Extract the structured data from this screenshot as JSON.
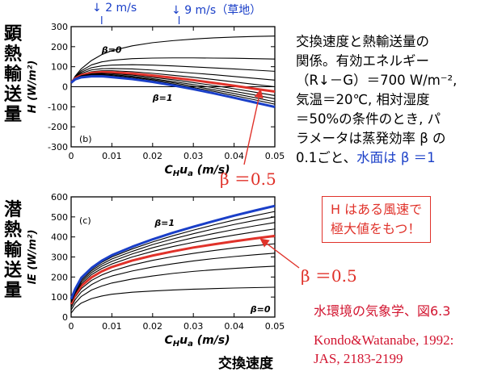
{
  "wind_markers": [
    {
      "label": "2 m/s",
      "x_value": 0.0075
    },
    {
      "label": "9 m/s（草地）",
      "x_value": 0.0265
    }
  ],
  "left_labels": {
    "sensible": [
      "顕",
      "熱",
      "輸",
      "送",
      "量"
    ],
    "latent": [
      "潜",
      "熱",
      "輸",
      "送",
      "量"
    ]
  },
  "description_lines": [
    "交換速度と熱輸送量の",
    "関係。有効エネルギー",
    "（R↓－G）＝700 W/m⁻²,",
    "気温＝20℃, 相対湿度",
    "＝50%の条件のとき, パ",
    "ラメータは蒸発効率 β の"
  ],
  "description_last_prefix": "0.1ごと、",
  "description_last_blue": "水面は β ＝1",
  "beta_half_label_top": "β ＝0.5",
  "beta_half_label_bottom": "β ＝0.5",
  "note_box": [
    "H はある風速で",
    "極大値をもつ！"
  ],
  "xaxis_bottom_label": "交換速度",
  "reference_title": "水環境の気象学、図6.3",
  "reference_citation": [
    "Kondo&Watanabe, 1992:",
    "JAS, 2183-2199"
  ],
  "colors": {
    "highlight_red": "#e0322a",
    "water_blue": "#1a3fc8",
    "curve_black": "#000000"
  },
  "chart_data": [
    {
      "type": "line",
      "panel": "(b)",
      "xlabel": "C_H u_a  (m/s)",
      "ylabel": "H  (W/m²)",
      "xlim": [
        0,
        0.05
      ],
      "ylim": [
        -300,
        300
      ],
      "x_ticks": [
        0,
        0.01,
        0.02,
        0.03,
        0.04,
        0.05
      ],
      "y_ticks": [
        -300,
        -200,
        -100,
        0,
        100,
        200,
        300
      ],
      "x_tick_labels": [
        "0",
        "0.01",
        "0.02",
        "0.03",
        "0.04",
        "0.05"
      ],
      "y_tick_labels": [
        "-300",
        "-200",
        "-100",
        "0",
        "100",
        "200",
        "300"
      ],
      "annotations": [
        "β=0",
        "β=1"
      ],
      "x": [
        0,
        0.001,
        0.0025,
        0.005,
        0.0075,
        0.01,
        0.015,
        0.02,
        0.025,
        0.03,
        0.035,
        0.04,
        0.045,
        0.05
      ],
      "series": [
        {
          "beta": 0.0,
          "values": [
            20,
            53,
            90,
            131,
            160,
            180,
            204,
            220,
            230,
            238,
            244,
            248,
            251,
            253
          ]
        },
        {
          "beta": 0.1,
          "values": [
            20,
            50,
            80,
            109,
            124,
            132,
            140,
            143,
            144,
            144,
            143,
            142,
            140,
            138
          ]
        },
        {
          "beta": 0.2,
          "values": [
            20,
            48,
            73,
            95,
            104,
            108,
            110,
            108,
            104,
            99,
            94,
            89,
            83,
            77
          ]
        },
        {
          "beta": 0.3,
          "values": [
            20,
            46,
            67,
            84,
            90,
            91,
            89,
            83,
            76,
            68,
            60,
            51,
            42,
            33
          ]
        },
        {
          "beta": 0.4,
          "values": [
            20,
            44,
            62,
            75,
            80,
            80,
            75,
            67,
            57,
            47,
            36,
            24,
            12,
            0
          ]
        },
        {
          "beta": 0.5,
          "highlight": "red",
          "values": [
            20,
            42,
            58,
            69,
            73,
            72,
            66,
            56,
            45,
            33,
            19,
            5,
            -10,
            -24
          ]
        },
        {
          "beta": 0.6,
          "values": [
            20,
            41,
            55,
            65,
            67,
            65,
            58,
            47,
            35,
            21,
            6,
            -10,
            -27,
            -44
          ]
        },
        {
          "beta": 0.7,
          "values": [
            20,
            40,
            53,
            61,
            63,
            60,
            52,
            40,
            26,
            11,
            -5,
            -23,
            -41,
            -60
          ]
        },
        {
          "beta": 0.8,
          "values": [
            20,
            39,
            51,
            58,
            59,
            56,
            47,
            35,
            20,
            3,
            -15,
            -34,
            -54,
            -75
          ]
        },
        {
          "beta": 0.9,
          "values": [
            20,
            38,
            49,
            55,
            56,
            52,
            43,
            30,
            14,
            -4,
            -23,
            -44,
            -65,
            -87
          ]
        },
        {
          "beta": 1.0,
          "highlight": "blue",
          "values": [
            20,
            37,
            47,
            52,
            52,
            48,
            38,
            24,
            7,
            -12,
            -33,
            -55,
            -78,
            -101
          ]
        }
      ]
    },
    {
      "type": "line",
      "panel": "(c)",
      "xlabel": "C_H u_a  (m/s)",
      "ylabel": "lE  (W/m²)",
      "xlim": [
        0,
        0.05
      ],
      "ylim": [
        0,
        600
      ],
      "x_ticks": [
        0,
        0.01,
        0.02,
        0.03,
        0.04,
        0.05
      ],
      "y_ticks": [
        0,
        100,
        200,
        300,
        400,
        500,
        600
      ],
      "x_tick_labels": [
        "0",
        "0.01",
        "0.02",
        "0.03",
        "0.04",
        "0.05"
      ],
      "y_tick_labels": [
        "0",
        "100",
        "200",
        "300",
        "400",
        "500",
        "600"
      ],
      "annotations": [
        "β=1",
        "β=0"
      ],
      "x": [
        0,
        0.001,
        0.0025,
        0.005,
        0.0075,
        0.01,
        0.015,
        0.02,
        0.025,
        0.03,
        0.035,
        0.04,
        0.045,
        0.05
      ],
      "series": [
        {
          "beta": 0.0,
          "values": [
            0,
            0,
            0,
            0,
            0,
            0,
            0,
            0,
            0,
            0,
            0,
            0,
            0,
            0
          ]
        },
        {
          "beta": 0.1,
          "values": [
            20,
            46,
            70,
            92,
            105,
            114,
            124,
            130,
            135,
            139,
            142,
            145,
            147,
            149
          ]
        },
        {
          "beta": 0.2,
          "values": [
            35,
            70,
            103,
            135,
            155,
            170,
            190,
            205,
            218,
            228,
            236,
            243,
            249,
            254
          ]
        },
        {
          "beta": 0.3,
          "values": [
            48,
            87,
            125,
            162,
            188,
            205,
            230,
            250,
            266,
            280,
            292,
            302,
            311,
            319
          ]
        },
        {
          "beta": 0.4,
          "values": [
            58,
            100,
            142,
            183,
            210,
            230,
            260,
            283,
            302,
            318,
            332,
            345,
            356,
            366
          ]
        },
        {
          "beta": 0.5,
          "highlight": "red",
          "values": [
            65,
            110,
            155,
            198,
            228,
            250,
            282,
            307,
            328,
            347,
            363,
            378,
            392,
            405
          ]
        },
        {
          "beta": 0.6,
          "values": [
            72,
            118,
            166,
            212,
            242,
            265,
            300,
            328,
            352,
            373,
            392,
            409,
            425,
            440
          ]
        },
        {
          "beta": 0.7,
          "values": [
            77,
            125,
            175,
            222,
            254,
            278,
            315,
            346,
            372,
            396,
            417,
            437,
            455,
            472
          ]
        },
        {
          "beta": 0.8,
          "values": [
            82,
            131,
            183,
            231,
            264,
            290,
            328,
            362,
            390,
            416,
            440,
            462,
            482,
            500
          ]
        },
        {
          "beta": 0.9,
          "values": [
            86,
            136,
            190,
            238,
            273,
            300,
            340,
            375,
            406,
            434,
            460,
            484,
            506,
            527
          ]
        },
        {
          "beta": 1.0,
          "highlight": "blue",
          "values": [
            90,
            140,
            196,
            245,
            281,
            309,
            351,
            388,
            421,
            451,
            479,
            506,
            531,
            555
          ]
        }
      ]
    }
  ]
}
